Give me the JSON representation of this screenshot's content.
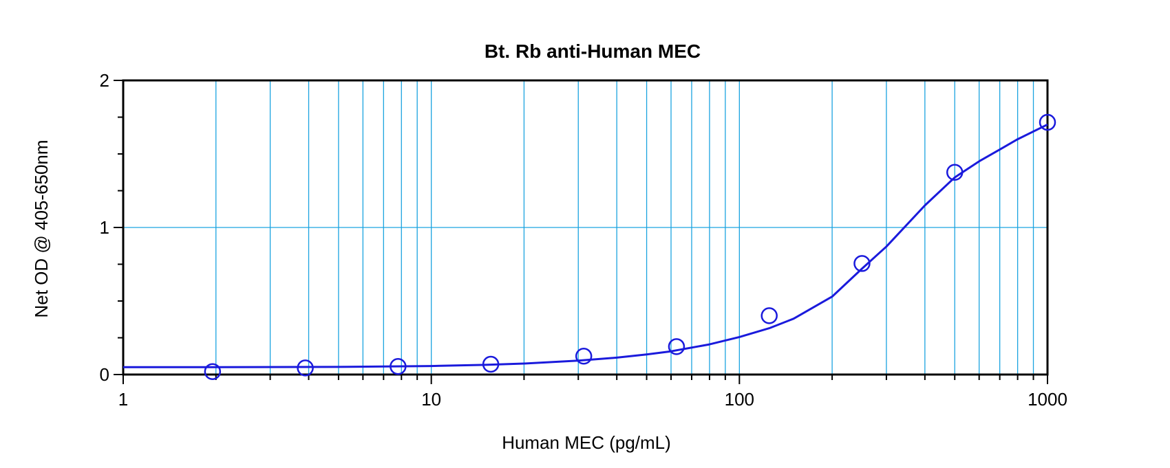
{
  "colors": {
    "grid": "#1aa3e0",
    "curve": "#1a1adc",
    "marker": "#1a1adc",
    "frame": "#000000",
    "background": "#ffffff"
  },
  "chart_data": {
    "type": "scatter",
    "title": "Bt. Rb anti-Human MEC",
    "xlabel": "Human MEC (pg/mL)",
    "ylabel": "Net OD @ 405-650nm",
    "x_scale": "log",
    "xlim": [
      1,
      1000
    ],
    "ylim": [
      0,
      2
    ],
    "x_ticks": [
      1,
      10,
      100,
      1000
    ],
    "x_tick_labels": [
      "1",
      "10",
      "100",
      "1000"
    ],
    "y_ticks": [
      0,
      1,
      2
    ],
    "y_tick_labels": [
      "0",
      "1",
      "2"
    ],
    "grid": true,
    "series": [
      {
        "kind": "points",
        "x": [
          1.95,
          3.9,
          7.8,
          15.6,
          31.25,
          62.5,
          125,
          250,
          500,
          1000
        ],
        "y": [
          0.02,
          0.045,
          0.055,
          0.07,
          0.125,
          0.19,
          0.4,
          0.755,
          1.375,
          1.715
        ]
      },
      {
        "kind": "fitted-curve",
        "x": [
          1,
          2,
          5,
          10,
          15,
          20,
          30,
          40,
          50,
          60,
          80,
          100,
          125,
          150,
          200,
          250,
          300,
          400,
          500,
          600,
          700,
          800,
          1000
        ],
        "y": [
          0.05,
          0.05,
          0.052,
          0.058,
          0.066,
          0.075,
          0.095,
          0.115,
          0.137,
          0.158,
          0.205,
          0.255,
          0.315,
          0.38,
          0.53,
          0.72,
          0.87,
          1.15,
          1.34,
          1.45,
          1.53,
          1.6,
          1.7
        ]
      }
    ]
  }
}
